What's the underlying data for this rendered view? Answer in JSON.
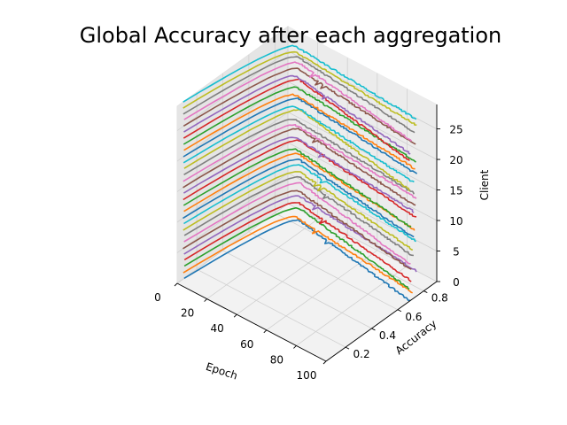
{
  "chart_data": {
    "type": "line",
    "projection": "3d",
    "title": "Global Accuracy after each aggregation",
    "xlabel": "Epoch",
    "ylabel": "Accuracy",
    "zlabel": "Client",
    "xlim": [
      0,
      100
    ],
    "ylim": [
      0.05,
      0.9
    ],
    "zlim": [
      0,
      29
    ],
    "xticks": [
      "0",
      "20",
      "40",
      "60",
      "80",
      "100"
    ],
    "yticks": [
      "0.2",
      "0.4",
      "0.6",
      "0.8"
    ],
    "zticks": [
      "0",
      "5",
      "10",
      "15",
      "20",
      "25"
    ],
    "grid": true,
    "legend": "none",
    "series_model": {
      "clients": 30,
      "epochs": 100,
      "start_accuracy": 0.1,
      "peak_accuracy": 0.82,
      "peak_epoch": 14,
      "end_accuracy": 0.72,
      "color_cycle": [
        "#1f77b4",
        "#ff7f0e",
        "#2ca02c",
        "#d62728",
        "#9467bd",
        "#8c564b",
        "#e377c2",
        "#7f7f7f",
        "#bcbd22",
        "#17becf"
      ]
    }
  }
}
